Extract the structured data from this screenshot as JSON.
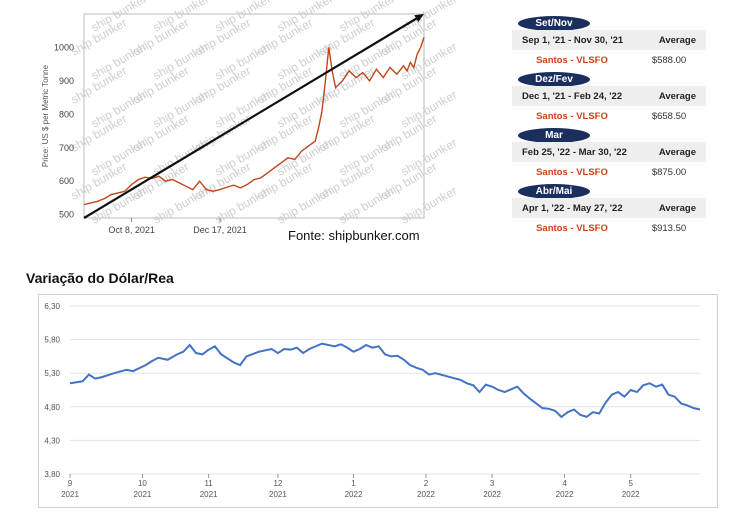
{
  "source_caption": "Fonte: shipbunker.com",
  "section_title": "Variação do Dólar/Rea",
  "periods": [
    {
      "label": "Set/Nov",
      "range": "Sep 1, '21 - Nov 30, '21",
      "avg_label": "Average",
      "product": "Santos - VLSFO",
      "price": "$588.00"
    },
    {
      "label": "Dez/Fev",
      "range": "Dec 1, '21 - Feb 24, '22",
      "avg_label": "Average",
      "product": "Santos - VLSFO",
      "price": "$658.50"
    },
    {
      "label": "Mar",
      "range": "Feb 25, '22 - Mar 30, '22",
      "avg_label": "Average",
      "product": "Santos - VLSFO",
      "price": "$875.00"
    },
    {
      "label": "Abr/Mai",
      "range": "Apr 1, '22 - May 27, '22",
      "avg_label": "Average",
      "product": "Santos - VLSFO",
      "price": "$913.50"
    }
  ],
  "chart_data": [
    {
      "type": "line",
      "title": "",
      "xlabel": "",
      "ylabel": "Price: US $ per Metric Tonne",
      "ylim": [
        490,
        1100
      ],
      "yticks": [
        500,
        600,
        700,
        800,
        900,
        1000
      ],
      "x_tick_labels": [
        "Oct 8, 2021",
        "Dec 17, 2021"
      ],
      "x_tick_positions": [
        0.14,
        0.4
      ],
      "watermark": "ship bunker",
      "grid": false,
      "trend_arrow": {
        "from": [
          0.0,
          490
        ],
        "to": [
          1.0,
          1100
        ]
      },
      "series": [
        {
          "color": "#c0461b",
          "x": [
            0.0,
            0.02,
            0.04,
            0.06,
            0.08,
            0.1,
            0.12,
            0.14,
            0.16,
            0.18,
            0.2,
            0.22,
            0.24,
            0.26,
            0.28,
            0.3,
            0.32,
            0.34,
            0.36,
            0.38,
            0.4,
            0.42,
            0.44,
            0.46,
            0.48,
            0.5,
            0.52,
            0.54,
            0.56,
            0.58,
            0.6,
            0.62,
            0.64,
            0.66,
            0.68,
            0.69,
            0.7,
            0.71,
            0.72,
            0.73,
            0.74,
            0.76,
            0.78,
            0.8,
            0.82,
            0.84,
            0.86,
            0.88,
            0.9,
            0.92,
            0.94,
            0.95,
            0.96,
            0.97,
            0.98,
            0.99,
            1.0
          ],
          "values": [
            530,
            535,
            540,
            548,
            560,
            565,
            570,
            590,
            605,
            612,
            608,
            615,
            600,
            605,
            595,
            585,
            575,
            600,
            575,
            570,
            575,
            582,
            588,
            580,
            590,
            605,
            610,
            625,
            640,
            655,
            670,
            665,
            690,
            705,
            720,
            760,
            810,
            900,
            1000,
            930,
            880,
            900,
            930,
            910,
            925,
            900,
            935,
            910,
            940,
            920,
            945,
            930,
            955,
            940,
            980,
            1000,
            1030
          ]
        }
      ]
    },
    {
      "type": "line",
      "title": "",
      "xlabel": "",
      "ylabel": "",
      "ylim": [
        3.8,
        6.3
      ],
      "yticks": [
        "6,30",
        "5,80",
        "5,30",
        "4,80",
        "4,30",
        "3,80"
      ],
      "grid": true,
      "x_ticks": [
        {
          "month": "9",
          "year": "2021",
          "pos": 0.0
        },
        {
          "month": "10",
          "year": "2021",
          "pos": 0.115
        },
        {
          "month": "11",
          "year": "2021",
          "pos": 0.22
        },
        {
          "month": "12",
          "year": "2021",
          "pos": 0.33
        },
        {
          "month": "1",
          "year": "2022",
          "pos": 0.45
        },
        {
          "month": "2",
          "year": "2022",
          "pos": 0.565
        },
        {
          "month": "3",
          "year": "2022",
          "pos": 0.67
        },
        {
          "month": "4",
          "year": "2022",
          "pos": 0.785
        },
        {
          "month": "5",
          "year": "2022",
          "pos": 0.89
        }
      ],
      "series": [
        {
          "color": "#4472c4",
          "x": [
            0.0,
            0.02,
            0.03,
            0.04,
            0.05,
            0.07,
            0.09,
            0.1,
            0.12,
            0.13,
            0.14,
            0.155,
            0.17,
            0.18,
            0.19,
            0.2,
            0.21,
            0.22,
            0.23,
            0.24,
            0.26,
            0.27,
            0.28,
            0.3,
            0.32,
            0.33,
            0.34,
            0.35,
            0.36,
            0.37,
            0.38,
            0.4,
            0.42,
            0.43,
            0.44,
            0.45,
            0.46,
            0.47,
            0.48,
            0.49,
            0.5,
            0.51,
            0.52,
            0.53,
            0.54,
            0.55,
            0.56,
            0.57,
            0.58,
            0.6,
            0.62,
            0.63,
            0.64,
            0.65,
            0.66,
            0.67,
            0.68,
            0.69,
            0.7,
            0.71,
            0.72,
            0.73,
            0.74,
            0.75,
            0.76,
            0.77,
            0.78,
            0.79,
            0.8,
            0.81,
            0.82,
            0.83,
            0.84,
            0.85,
            0.86,
            0.87,
            0.88,
            0.89,
            0.9,
            0.91,
            0.92,
            0.93,
            0.94,
            0.95,
            0.96,
            0.97,
            0.98,
            0.99,
            1.0
          ],
          "values": [
            5.15,
            5.18,
            5.28,
            5.22,
            5.24,
            5.3,
            5.35,
            5.33,
            5.42,
            5.48,
            5.53,
            5.5,
            5.58,
            5.62,
            5.72,
            5.6,
            5.58,
            5.65,
            5.7,
            5.58,
            5.46,
            5.42,
            5.55,
            5.62,
            5.66,
            5.6,
            5.66,
            5.65,
            5.68,
            5.6,
            5.66,
            5.74,
            5.7,
            5.73,
            5.68,
            5.62,
            5.66,
            5.72,
            5.68,
            5.7,
            5.58,
            5.55,
            5.56,
            5.5,
            5.42,
            5.38,
            5.35,
            5.28,
            5.3,
            5.25,
            5.2,
            5.15,
            5.12,
            5.02,
            5.13,
            5.1,
            5.05,
            5.02,
            5.06,
            5.1,
            5.0,
            4.92,
            4.85,
            4.78,
            4.77,
            4.74,
            4.65,
            4.72,
            4.76,
            4.68,
            4.65,
            4.72,
            4.7,
            4.86,
            4.98,
            5.02,
            4.95,
            5.05,
            5.02,
            5.12,
            5.15,
            5.1,
            5.13,
            4.98,
            4.95,
            4.85,
            4.82,
            4.78,
            4.76
          ]
        }
      ]
    }
  ]
}
